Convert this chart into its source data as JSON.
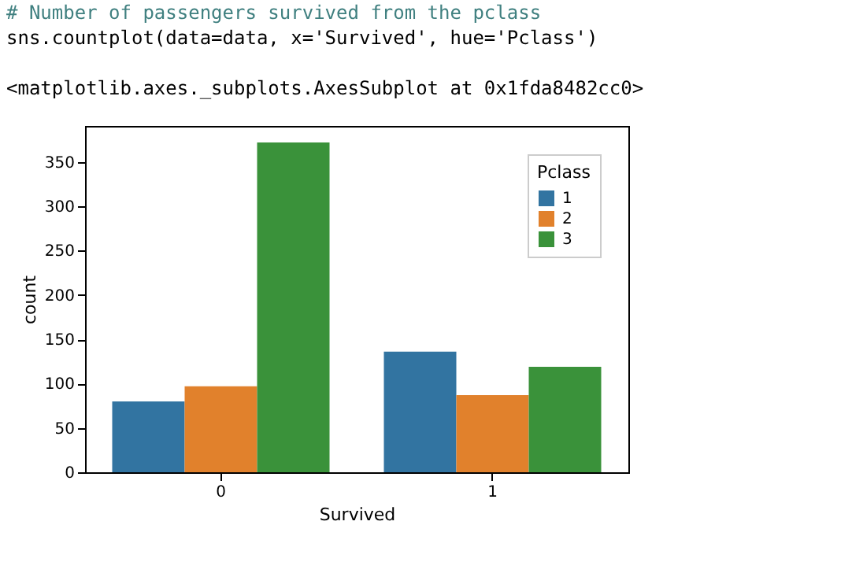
{
  "chart_data": {
    "type": "bar",
    "xlabel": "Survived",
    "ylabel": "count",
    "legend_title": "Pclass",
    "categories": [
      "0",
      "1"
    ],
    "series": [
      {
        "name": "1",
        "color": "#3274a1",
        "values": [
          80,
          136
        ]
      },
      {
        "name": "2",
        "color": "#e1812c",
        "values": [
          97,
          87
        ]
      },
      {
        "name": "3",
        "color": "#3a923a",
        "values": [
          372,
          119
        ]
      }
    ],
    "ylim": [
      0,
      390.6
    ],
    "yticks": [
      0,
      50,
      100,
      150,
      200,
      250,
      300,
      350
    ],
    "grid": false,
    "legend": "top right",
    "annotations": [
      "# Number of passengers survived from the pclass",
      "sns.countplot(data=data, x='Survived', hue='Pclass')",
      "<matplotlib.axes._subplots.AxesSubplot at 0x1fda8482cc0>"
    ]
  }
}
